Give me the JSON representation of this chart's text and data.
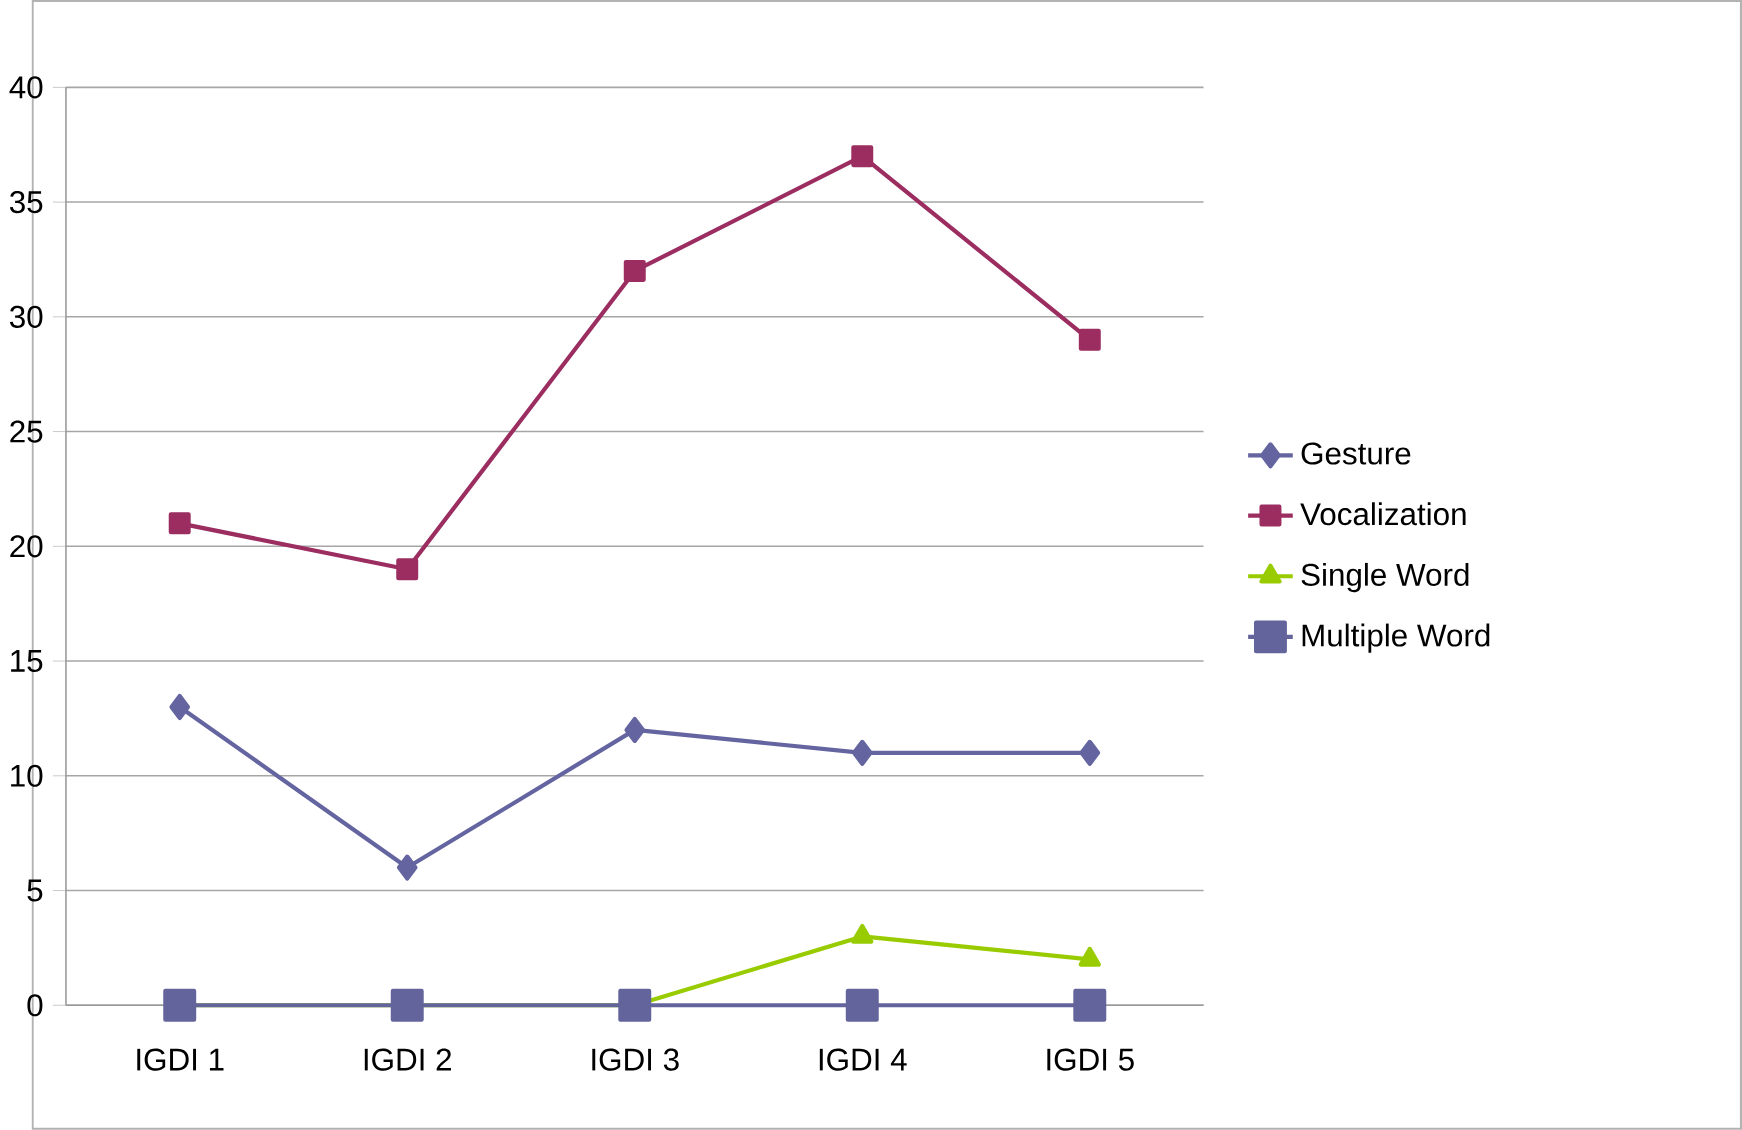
{
  "chart_data": {
    "type": "line",
    "categories": [
      "IGDI 1",
      "IGDI 2",
      "IGDI 3",
      "IGDI 4",
      "IGDI 5"
    ],
    "series": [
      {
        "name": "Gesture",
        "color": "#6464a0",
        "marker": "diamond",
        "values": [
          13,
          6,
          12,
          11,
          11
        ]
      },
      {
        "name": "Vocalization",
        "color": "#9b2d60",
        "marker": "square",
        "values": [
          21,
          19,
          32,
          37,
          29
        ]
      },
      {
        "name": "Single Word",
        "color": "#99cc00",
        "marker": "triangle",
        "values": [
          0,
          0,
          0,
          3,
          2
        ]
      },
      {
        "name": "Multiple Word",
        "color": "#64649c",
        "marker": "square",
        "values": [
          0,
          0,
          0,
          0,
          0
        ]
      }
    ],
    "ylim": [
      0,
      40
    ],
    "yticks": [
      0,
      5,
      10,
      15,
      20,
      25,
      30,
      35,
      40
    ],
    "grid": "y",
    "legend": "right",
    "line_style": "solid"
  }
}
